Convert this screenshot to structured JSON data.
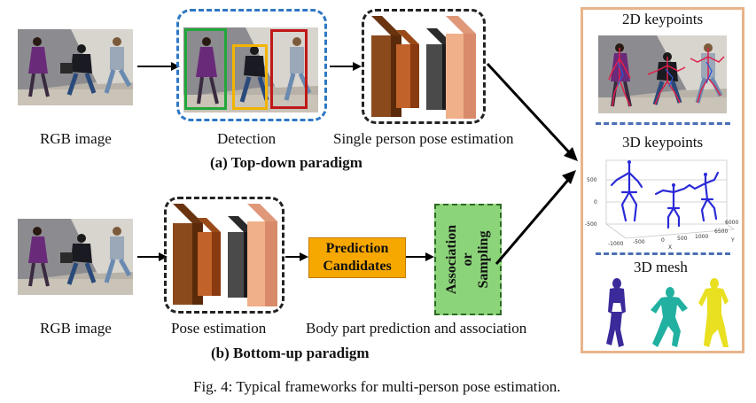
{
  "top": {
    "rgb_label": "RGB image",
    "detection_label": "Detection",
    "spe_label": "Single person pose estimation",
    "paradigm_label": "(a) Top-down paradigm"
  },
  "bottom": {
    "rgb_label": "RGB image",
    "pose_label": "Pose estimation",
    "prediction_box": "Prediction Candidates",
    "association_word1": "Association",
    "association_word2": "or",
    "association_word3": "Sampling",
    "body_part_label": "Body part prediction and association",
    "paradigm_label": "(b) Bottom-up paradigm"
  },
  "outputs": {
    "kp2d_label": "2D keypoints",
    "kp3d_label": "3D keypoints",
    "mesh_label": "3D mesh",
    "axis_ticks_y": [
      "500",
      "0",
      "-500"
    ],
    "axis_ticks_x": [
      "-1000",
      "-500",
      "0",
      "500",
      "1000"
    ],
    "axis_ticks_z": [
      "6500",
      "6000"
    ],
    "axis_x_name": "X",
    "axis_y_name": "Y"
  },
  "caption": "Fig. 4: Typical frameworks for multi-person pose estimation.",
  "colors": {
    "detection_border": "#2f78c4",
    "box_green": "#22a83a",
    "box_yellow": "#f2b400",
    "box_red": "#c01818",
    "cnn_dark_brown": "#8a4a1c",
    "cnn_brown": "#c0622a",
    "cnn_gray": "#4a4a4a",
    "cnn_peach": "#f0b08a",
    "prediction_fill": "#f7a800",
    "association_fill": "#8cd47a",
    "panel_border": "#e8b48a",
    "separator": "#4a6fb5",
    "skeleton": "#2a2ad8",
    "mesh_purple": "#3a2a9a",
    "mesh_teal": "#22b0a0",
    "mesh_yellow": "#e8e020"
  }
}
